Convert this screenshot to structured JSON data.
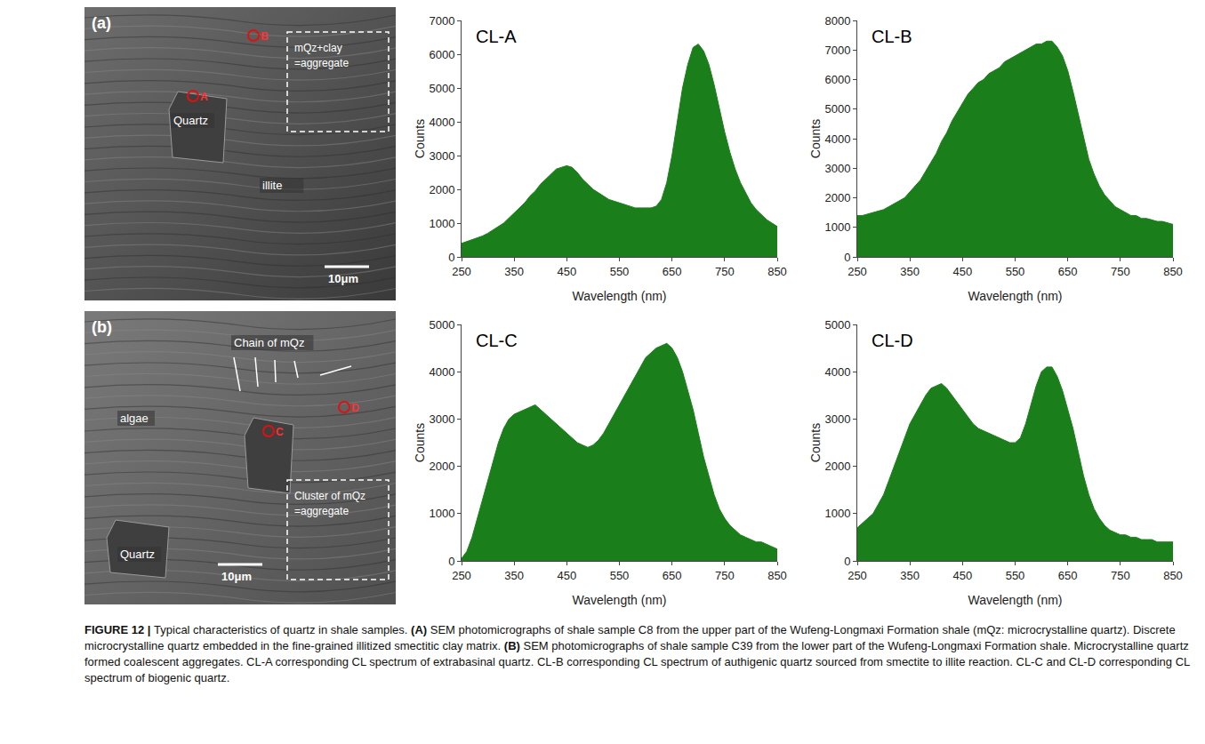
{
  "chart_data": [
    {
      "type": "area",
      "title": "CL-A",
      "x_label": "Wavelength (nm)",
      "y_label": "Counts",
      "color": "#1a7f1a",
      "grid": false,
      "x": [
        250,
        260,
        270,
        280,
        290,
        300,
        310,
        320,
        330,
        340,
        350,
        360,
        370,
        380,
        390,
        400,
        410,
        420,
        430,
        440,
        450,
        460,
        470,
        480,
        490,
        500,
        510,
        520,
        530,
        540,
        550,
        560,
        570,
        580,
        590,
        600,
        610,
        620,
        630,
        640,
        650,
        660,
        670,
        680,
        690,
        700,
        710,
        720,
        730,
        740,
        750,
        760,
        770,
        780,
        790,
        800,
        810,
        820,
        830,
        840,
        850
      ],
      "values": [
        400,
        450,
        500,
        550,
        620,
        700,
        800,
        900,
        1000,
        1150,
        1300,
        1450,
        1600,
        1800,
        1950,
        2150,
        2300,
        2450,
        2600,
        2650,
        2700,
        2650,
        2500,
        2300,
        2150,
        2000,
        1900,
        1800,
        1700,
        1650,
        1600,
        1550,
        1500,
        1450,
        1450,
        1450,
        1450,
        1500,
        1700,
        2200,
        3000,
        4000,
        5000,
        5700,
        6200,
        6300,
        6100,
        5700,
        5100,
        4400,
        3700,
        3100,
        2600,
        2200,
        1900,
        1600,
        1400,
        1250,
        1100,
        1000,
        900
      ],
      "xlim": [
        250,
        850
      ],
      "xticks": [
        250,
        350,
        450,
        550,
        650,
        750,
        850
      ],
      "ylim": [
        0,
        7000
      ],
      "yticks": [
        0,
        1000,
        2000,
        3000,
        4000,
        5000,
        6000,
        7000
      ]
    },
    {
      "type": "area",
      "title": "CL-B",
      "x_label": "Wavelength (nm)",
      "y_label": "Counts",
      "color": "#1a7f1a",
      "grid": false,
      "x": [
        250,
        260,
        270,
        280,
        290,
        300,
        310,
        320,
        330,
        340,
        350,
        360,
        370,
        380,
        390,
        400,
        410,
        420,
        430,
        440,
        450,
        460,
        470,
        480,
        490,
        500,
        510,
        520,
        530,
        540,
        550,
        560,
        570,
        580,
        590,
        600,
        610,
        620,
        630,
        640,
        650,
        660,
        670,
        680,
        690,
        700,
        710,
        720,
        730,
        740,
        750,
        760,
        770,
        780,
        790,
        800,
        810,
        820,
        830,
        840,
        850
      ],
      "values": [
        1400,
        1400,
        1450,
        1500,
        1550,
        1600,
        1700,
        1800,
        1900,
        2000,
        2200,
        2400,
        2600,
        2900,
        3200,
        3500,
        3900,
        4200,
        4600,
        4900,
        5200,
        5500,
        5700,
        5900,
        6000,
        6200,
        6300,
        6400,
        6600,
        6700,
        6800,
        6900,
        7000,
        7100,
        7200,
        7200,
        7300,
        7300,
        7100,
        6800,
        6300,
        5600,
        4800,
        4000,
        3300,
        2800,
        2400,
        2100,
        1900,
        1700,
        1600,
        1500,
        1400,
        1400,
        1300,
        1300,
        1250,
        1200,
        1200,
        1150,
        1100
      ],
      "xlim": [
        250,
        850
      ],
      "xticks": [
        250,
        350,
        450,
        550,
        650,
        750,
        850
      ],
      "ylim": [
        0,
        8000
      ],
      "yticks": [
        0,
        1000,
        2000,
        3000,
        4000,
        5000,
        6000,
        7000,
        8000
      ]
    },
    {
      "type": "area",
      "title": "CL-C",
      "x_label": "Wavelength (nm)",
      "y_label": "Counts",
      "color": "#1a7f1a",
      "grid": false,
      "x": [
        250,
        260,
        270,
        280,
        290,
        300,
        310,
        320,
        330,
        340,
        350,
        360,
        370,
        380,
        390,
        400,
        410,
        420,
        430,
        440,
        450,
        460,
        470,
        480,
        490,
        500,
        510,
        520,
        530,
        540,
        550,
        560,
        570,
        580,
        590,
        600,
        610,
        620,
        630,
        640,
        650,
        660,
        670,
        680,
        690,
        700,
        710,
        720,
        730,
        740,
        750,
        760,
        770,
        780,
        790,
        800,
        810,
        820,
        830,
        840,
        850
      ],
      "values": [
        50,
        200,
        500,
        900,
        1300,
        1700,
        2100,
        2500,
        2800,
        3000,
        3100,
        3150,
        3200,
        3250,
        3300,
        3200,
        3100,
        3000,
        2900,
        2800,
        2700,
        2600,
        2500,
        2450,
        2400,
        2450,
        2550,
        2700,
        2900,
        3100,
        3300,
        3500,
        3700,
        3900,
        4100,
        4300,
        4400,
        4500,
        4550,
        4600,
        4500,
        4300,
        4000,
        3600,
        3200,
        2700,
        2200,
        1800,
        1400,
        1100,
        900,
        750,
        650,
        550,
        500,
        450,
        400,
        400,
        350,
        300,
        250
      ],
      "xlim": [
        250,
        850
      ],
      "xticks": [
        250,
        350,
        450,
        550,
        650,
        750,
        850
      ],
      "ylim": [
        0,
        5000
      ],
      "yticks": [
        0,
        1000,
        2000,
        3000,
        4000,
        5000
      ]
    },
    {
      "type": "area",
      "title": "CL-D",
      "x_label": "Wavelength (nm)",
      "y_label": "Counts",
      "color": "#1a7f1a",
      "grid": false,
      "x": [
        250,
        260,
        270,
        280,
        290,
        300,
        310,
        320,
        330,
        340,
        350,
        360,
        370,
        380,
        390,
        400,
        410,
        420,
        430,
        440,
        450,
        460,
        470,
        480,
        490,
        500,
        510,
        520,
        530,
        540,
        550,
        560,
        570,
        580,
        590,
        600,
        610,
        620,
        630,
        640,
        650,
        660,
        670,
        680,
        690,
        700,
        710,
        720,
        730,
        740,
        750,
        760,
        770,
        780,
        790,
        800,
        810,
        820,
        830,
        840,
        850
      ],
      "values": [
        700,
        800,
        900,
        1000,
        1200,
        1400,
        1700,
        2000,
        2300,
        2600,
        2900,
        3100,
        3300,
        3500,
        3650,
        3700,
        3750,
        3650,
        3500,
        3350,
        3200,
        3050,
        2900,
        2800,
        2750,
        2700,
        2650,
        2600,
        2550,
        2500,
        2500,
        2600,
        2900,
        3300,
        3700,
        4000,
        4100,
        4100,
        3900,
        3600,
        3200,
        2800,
        2300,
        1800,
        1400,
        1100,
        900,
        750,
        650,
        600,
        550,
        550,
        500,
        500,
        450,
        450,
        450,
        400,
        400,
        400,
        400
      ],
      "xlim": [
        250,
        850
      ],
      "xticks": [
        250,
        350,
        450,
        550,
        650,
        750,
        850
      ],
      "ylim": [
        0,
        5000
      ],
      "yticks": [
        0,
        1000,
        2000,
        3000,
        4000,
        5000
      ]
    }
  ],
  "photos": [
    {
      "label": "(a)",
      "notes": [
        "Quartz",
        "illite"
      ],
      "box": [
        "mQz+clay",
        "=aggregate"
      ],
      "scale_bar": "10μm",
      "points": [
        "A",
        "B"
      ]
    },
    {
      "label": "(b)",
      "notes": [
        "algae",
        "Quartz",
        "Chain of mQz"
      ],
      "box": [
        "Cluster of mQz",
        "=aggregate"
      ],
      "scale_bar": "10μm",
      "points": [
        "C",
        "D"
      ]
    }
  ],
  "caption": [
    {
      "text": "FIGURE 12 | ",
      "bold": true
    },
    {
      "text": "Typical characteristics of quartz in shale samples. "
    },
    {
      "text": "(A)",
      "bold": true
    },
    {
      "text": " SEM photomicrographs of shale sample C8 from the upper part of the Wufeng-Longmaxi Formation shale (mQz: microcrystalline quartz). Discrete microcrystalline quartz embedded in the fine-grained illitized smectitic clay matrix. "
    },
    {
      "text": "(B)",
      "bold": true
    },
    {
      "text": " SEM photomicrographs of shale sample C39 from the lower part of the Wufeng-Longmaxi Formation shale. Microcrystalline quartz formed coalescent aggregates. CL-A corresponding CL spectrum of extrabasinal quartz. CL-B corresponding CL spectrum of authigenic quartz sourced from smectite to illite reaction. CL-C and CL-D corresponding CL spectrum of biogenic quartz."
    }
  ]
}
